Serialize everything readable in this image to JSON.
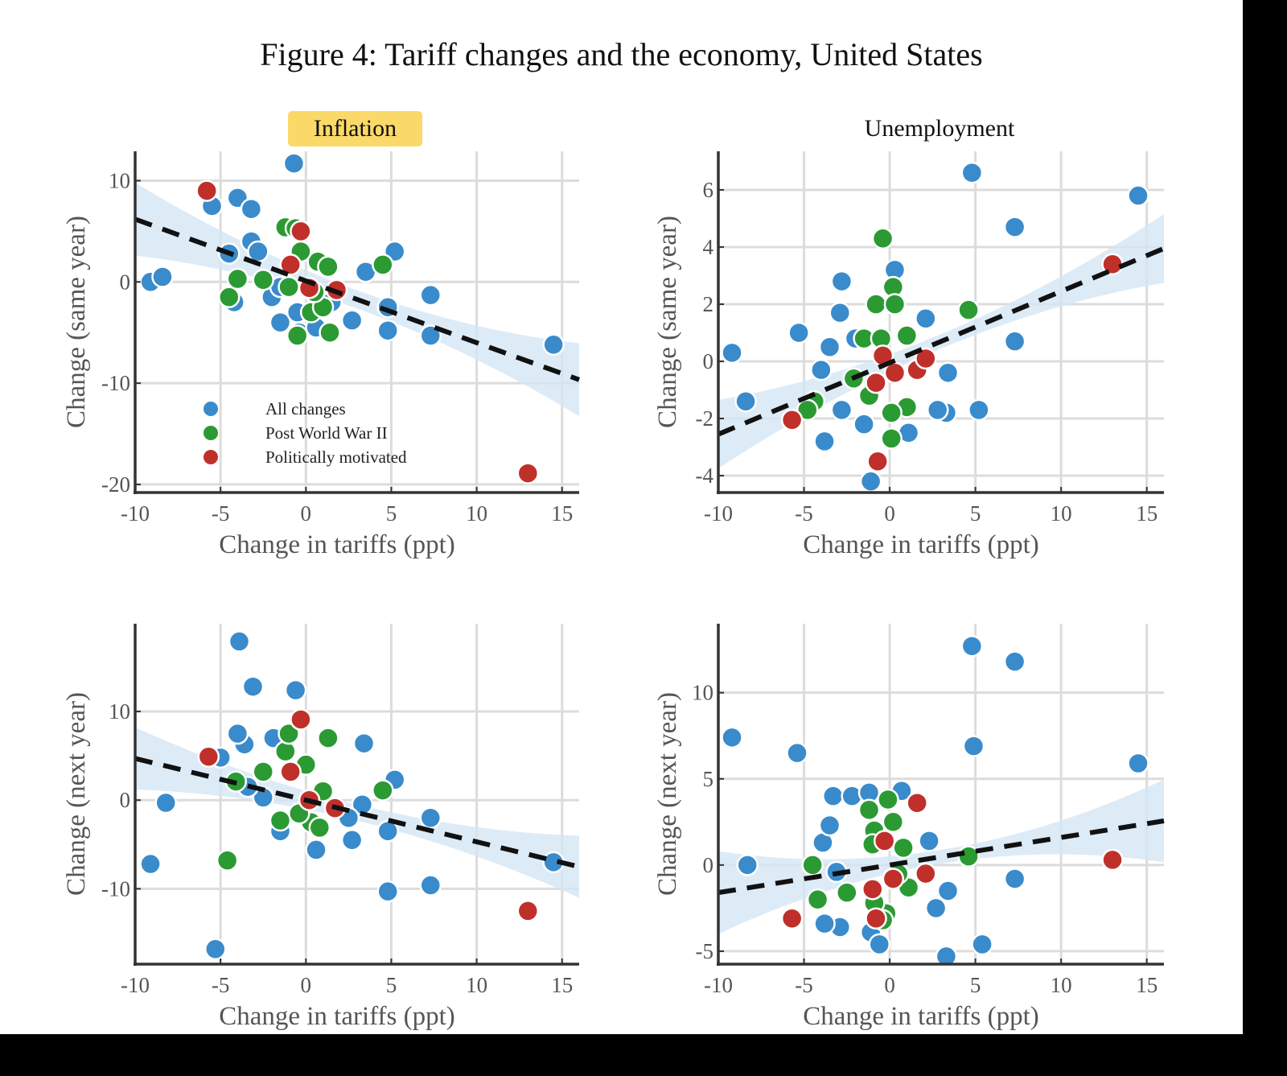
{
  "title": "Figure 4: Tariff changes and the economy, United States",
  "column_titles": [
    "Inflation",
    "Unemployment"
  ],
  "colors": {
    "all": "#3a8bcb",
    "postwar": "#2b9a33",
    "political": "#c0302b",
    "band": "#d4e6f5",
    "fit": "#111111",
    "highlight": "#fbd969"
  },
  "legend": [
    {
      "key": "all",
      "label": "All changes"
    },
    {
      "key": "postwar",
      "label": "Post World War II"
    },
    {
      "key": "political",
      "label": "Politically motivated"
    }
  ],
  "chart_data": [
    {
      "type": "scatter",
      "id": "infl-same",
      "column_title": "Inflation",
      "xlabel": "Change in tariffs (ppt)",
      "ylabel": "Change (same year)",
      "xlim": [
        -10,
        16
      ],
      "ylim": [
        -20.8,
        12.9
      ],
      "xticks": [
        -10,
        -5,
        0,
        5,
        10,
        15
      ],
      "yticks": [
        -20,
        -10,
        0,
        10
      ],
      "grid": true,
      "legend": "lower-left",
      "fit": {
        "intercept": 0.1,
        "slope": -0.61,
        "ci_halfwidth_center": 0.9,
        "ci_halfwidth_edge": 3.6
      },
      "series": {
        "all": [
          [
            -9.1,
            0
          ],
          [
            -8.4,
            0.5
          ],
          [
            -5.5,
            7.5
          ],
          [
            -4,
            8.3
          ],
          [
            -3.2,
            7.2
          ],
          [
            -4.5,
            2.8
          ],
          [
            -3.2,
            4
          ],
          [
            -2.8,
            3
          ],
          [
            -0.7,
            11.7
          ],
          [
            -2,
            -1.5
          ],
          [
            -4.2,
            -2
          ],
          [
            -1.5,
            -4
          ],
          [
            -0.4,
            -5
          ],
          [
            0.6,
            -4.5
          ],
          [
            2.7,
            -3.8
          ],
          [
            3.5,
            1
          ],
          [
            5.2,
            3
          ],
          [
            4.8,
            -2.5
          ],
          [
            4.8,
            -4.8
          ],
          [
            7.3,
            -1.3
          ],
          [
            7.3,
            -5.3
          ],
          [
            14.5,
            -6.2
          ],
          [
            -1.5,
            -0.5
          ],
          [
            1.5,
            -2
          ],
          [
            -0.5,
            -3
          ]
        ],
        "postwar": [
          [
            -4.5,
            -1.5
          ],
          [
            -4,
            0.3
          ],
          [
            -2.5,
            0.2
          ],
          [
            -1.2,
            5.4
          ],
          [
            -0.6,
            5.3
          ],
          [
            -1,
            -0.5
          ],
          [
            0.3,
            -3
          ],
          [
            1,
            -2.5
          ],
          [
            1.4,
            -5
          ],
          [
            -0.5,
            -5.3
          ],
          [
            0.7,
            2
          ],
          [
            1.3,
            1.5
          ],
          [
            4.5,
            1.7
          ],
          [
            -0.3,
            3
          ],
          [
            0.5,
            -1
          ]
        ],
        "political": [
          [
            -5.8,
            9
          ],
          [
            -0.3,
            5
          ],
          [
            -0.9,
            1.7
          ],
          [
            0.2,
            -0.6
          ],
          [
            1.8,
            -0.8
          ],
          [
            13,
            -18.9
          ]
        ]
      }
    },
    {
      "type": "scatter",
      "id": "unemp-same",
      "column_title": "Unemployment",
      "xlabel": "Change in tariffs (ppt)",
      "ylabel": "Change (same year)",
      "xlim": [
        -10,
        16
      ],
      "ylim": [
        -4.59,
        7.35
      ],
      "xticks": [
        -10,
        -5,
        0,
        5,
        10,
        15
      ],
      "yticks": [
        -4,
        -2,
        0,
        2,
        4,
        6
      ],
      "grid": true,
      "fit": {
        "intercept": -0.05,
        "slope": 0.25,
        "ci_halfwidth_center": 0.25,
        "ci_halfwidth_edge": 1.2
      },
      "series": {
        "all": [
          [
            -9.2,
            0.3
          ],
          [
            -8.4,
            -1.4
          ],
          [
            -5.3,
            1
          ],
          [
            -3.8,
            -2.8
          ],
          [
            -2.9,
            1.7
          ],
          [
            -2.8,
            2.8
          ],
          [
            -1.5,
            -2.2
          ],
          [
            -1.1,
            -4.2
          ],
          [
            0.3,
            3.2
          ],
          [
            1.1,
            -2.5
          ],
          [
            2.1,
            1.5
          ],
          [
            3.3,
            -1.8
          ],
          [
            3.4,
            -0.4
          ],
          [
            4.8,
            6.6
          ],
          [
            5.2,
            -1.7
          ],
          [
            7.3,
            4.7
          ],
          [
            7.3,
            0.7
          ],
          [
            14.5,
            5.8
          ],
          [
            -3.5,
            0.5
          ],
          [
            -4,
            -0.3
          ],
          [
            -4.5,
            -1.5
          ],
          [
            -2.8,
            -1.7
          ],
          [
            2.8,
            -1.7
          ],
          [
            -2,
            0.8
          ]
        ],
        "postwar": [
          [
            -0.4,
            4.3
          ],
          [
            0.2,
            2.6
          ],
          [
            -0.8,
            2
          ],
          [
            0.3,
            2
          ],
          [
            -1.5,
            0.8
          ],
          [
            -0.5,
            0.8
          ],
          [
            1,
            0.9
          ],
          [
            -2.1,
            -0.6
          ],
          [
            -4.4,
            -1.4
          ],
          [
            -4.8,
            -1.7
          ],
          [
            1,
            -1.6
          ],
          [
            0.1,
            -1.8
          ],
          [
            0.1,
            -2.7
          ],
          [
            -1.2,
            -1.2
          ],
          [
            4.6,
            1.8
          ]
        ],
        "political": [
          [
            -5.7,
            -2.05
          ],
          [
            -0.4,
            0.2
          ],
          [
            -0.8,
            -0.75
          ],
          [
            0.3,
            -0.4
          ],
          [
            1.6,
            -0.3
          ],
          [
            2.1,
            0.1
          ],
          [
            -0.7,
            -3.5
          ],
          [
            13,
            3.4
          ]
        ]
      }
    },
    {
      "type": "scatter",
      "id": "infl-next",
      "column_title": "Inflation",
      "xlabel": "Change in tariffs (ppt)",
      "ylabel": "Change (next year)",
      "xlim": [
        -10,
        16
      ],
      "ylim": [
        -18.5,
        19.9
      ],
      "xticks": [
        -10,
        -5,
        0,
        5,
        10,
        15
      ],
      "yticks": [
        -10,
        0,
        10
      ],
      "grid": true,
      "fit": {
        "intercept": 0,
        "slope": -0.47,
        "ci_halfwidth_center": 0.9,
        "ci_halfwidth_edge": 3.5
      },
      "series": {
        "all": [
          [
            -9.1,
            -7.2
          ],
          [
            -8.2,
            -0.3
          ],
          [
            -5.3,
            -16.8
          ],
          [
            -5,
            4.8
          ],
          [
            -3.9,
            17.9
          ],
          [
            -3.1,
            12.8
          ],
          [
            -3.6,
            6.3
          ],
          [
            -4,
            7.5
          ],
          [
            -1.9,
            7
          ],
          [
            -0.6,
            12.4
          ],
          [
            -2.5,
            0.3
          ],
          [
            -3.4,
            1.5
          ],
          [
            -1.5,
            -3.5
          ],
          [
            0.6,
            -5.6
          ],
          [
            2.7,
            -4.5
          ],
          [
            3.4,
            6.4
          ],
          [
            5.2,
            2.3
          ],
          [
            4.8,
            -3.5
          ],
          [
            4.8,
            -10.3
          ],
          [
            7.3,
            -2
          ],
          [
            7.3,
            -9.6
          ],
          [
            14.5,
            -7
          ],
          [
            3.3,
            -0.5
          ],
          [
            2.5,
            -2
          ]
        ],
        "postwar": [
          [
            -4.1,
            2.1
          ],
          [
            -2.5,
            3.2
          ],
          [
            -1.2,
            5.5
          ],
          [
            -1,
            7.5
          ],
          [
            0,
            4
          ],
          [
            1.3,
            7
          ],
          [
            -4.6,
            -6.8
          ],
          [
            4.5,
            1.1
          ],
          [
            0.3,
            -2.5
          ],
          [
            -1.5,
            -2.3
          ],
          [
            0.8,
            -3.1
          ],
          [
            -0.4,
            -1.5
          ],
          [
            1,
            1
          ]
        ],
        "political": [
          [
            -5.7,
            4.9
          ],
          [
            -0.3,
            9.1
          ],
          [
            -0.9,
            3.2
          ],
          [
            0.2,
            0
          ],
          [
            1.7,
            -0.9
          ],
          [
            13,
            -12.5
          ]
        ]
      }
    },
    {
      "type": "scatter",
      "id": "unemp-next",
      "column_title": "Unemployment",
      "xlabel": "Change in tariffs (ppt)",
      "ylabel": "Change (next year)",
      "xlim": [
        -10,
        16
      ],
      "ylim": [
        -5.75,
        14.0
      ],
      "xticks": [
        -10,
        -5,
        0,
        5,
        10,
        15
      ],
      "yticks": [
        -5,
        0,
        5,
        10
      ],
      "grid": true,
      "fit": {
        "intercept": 0,
        "slope": 0.16,
        "ci_halfwidth_center": 0.4,
        "ci_halfwidth_edge": 2.4
      },
      "series": {
        "all": [
          [
            -9.2,
            7.4
          ],
          [
            -8.3,
            0
          ],
          [
            -5.4,
            6.5
          ],
          [
            -3.9,
            1.3
          ],
          [
            -3.3,
            4
          ],
          [
            -2.2,
            4
          ],
          [
            -1.2,
            4.2
          ],
          [
            0.7,
            4.3
          ],
          [
            -2.9,
            -3.6
          ],
          [
            -3.8,
            -3.4
          ],
          [
            -1.1,
            -3.9
          ],
          [
            -0.6,
            -4.6
          ],
          [
            3.3,
            -5.3
          ],
          [
            5.4,
            -4.6
          ],
          [
            2.7,
            -2.5
          ],
          [
            3.4,
            -1.5
          ],
          [
            2.3,
            1.4
          ],
          [
            4.8,
            12.7
          ],
          [
            7.3,
            11.8
          ],
          [
            4.9,
            6.9
          ],
          [
            7.3,
            -0.8
          ],
          [
            14.5,
            5.9
          ],
          [
            -3.5,
            2.3
          ],
          [
            -3.1,
            -0.4
          ]
        ],
        "postwar": [
          [
            -4.5,
            0
          ],
          [
            -4.2,
            -2
          ],
          [
            -2.5,
            -1.6
          ],
          [
            -1.2,
            3.2
          ],
          [
            -0.1,
            3.8
          ],
          [
            0.2,
            2.5
          ],
          [
            -0.9,
            2
          ],
          [
            -1,
            1.2
          ],
          [
            0.8,
            1
          ],
          [
            1.1,
            -1.3
          ],
          [
            -0.2,
            -2.8
          ],
          [
            -0.9,
            -2.2
          ],
          [
            -0.4,
            -3.2
          ],
          [
            4.6,
            0.5
          ],
          [
            0.5,
            -0.5
          ]
        ],
        "political": [
          [
            -5.7,
            -3.1
          ],
          [
            1.6,
            3.6
          ],
          [
            -0.3,
            1.4
          ],
          [
            0.2,
            -0.8
          ],
          [
            -1,
            -1.4
          ],
          [
            -0.8,
            -3.1
          ],
          [
            2.1,
            -0.5
          ],
          [
            13,
            0.3
          ]
        ]
      }
    }
  ]
}
